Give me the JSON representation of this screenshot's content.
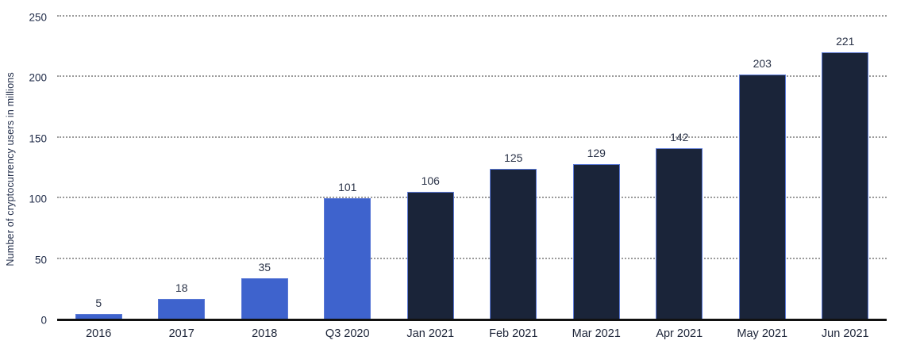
{
  "chart_data": {
    "type": "bar",
    "title": "",
    "xlabel": "",
    "ylabel": "Number of cryptocurrency users in millions",
    "categories": [
      "2016",
      "2017",
      "2018",
      "Q3 2020",
      "Jan 2021",
      "Feb 2021",
      "Mar 2021",
      "Apr 2021",
      "May 2021",
      "Jun 2021"
    ],
    "values": [
      5,
      18,
      35,
      101,
      106,
      125,
      129,
      142,
      203,
      221
    ],
    "value_labels_position": "above bars",
    "colors": [
      "#3E63CD",
      "#3E63CD",
      "#3E63CD",
      "#3E63CD",
      "#1A2439",
      "#1A2439",
      "#1A2439",
      "#1A2439",
      "#1A2439",
      "#1A2439"
    ],
    "bar_border_color": "#5B79D6",
    "ylim": [
      0,
      250
    ],
    "yticks": [
      0,
      50,
      100,
      150,
      200,
      250
    ],
    "grid": "horizontal dotted",
    "gridline_color": "#9B9B9B",
    "axis_line_color": "#111111",
    "text_color": "#1E2A47",
    "background_color": "#FFFFFF",
    "legend": "none"
  }
}
